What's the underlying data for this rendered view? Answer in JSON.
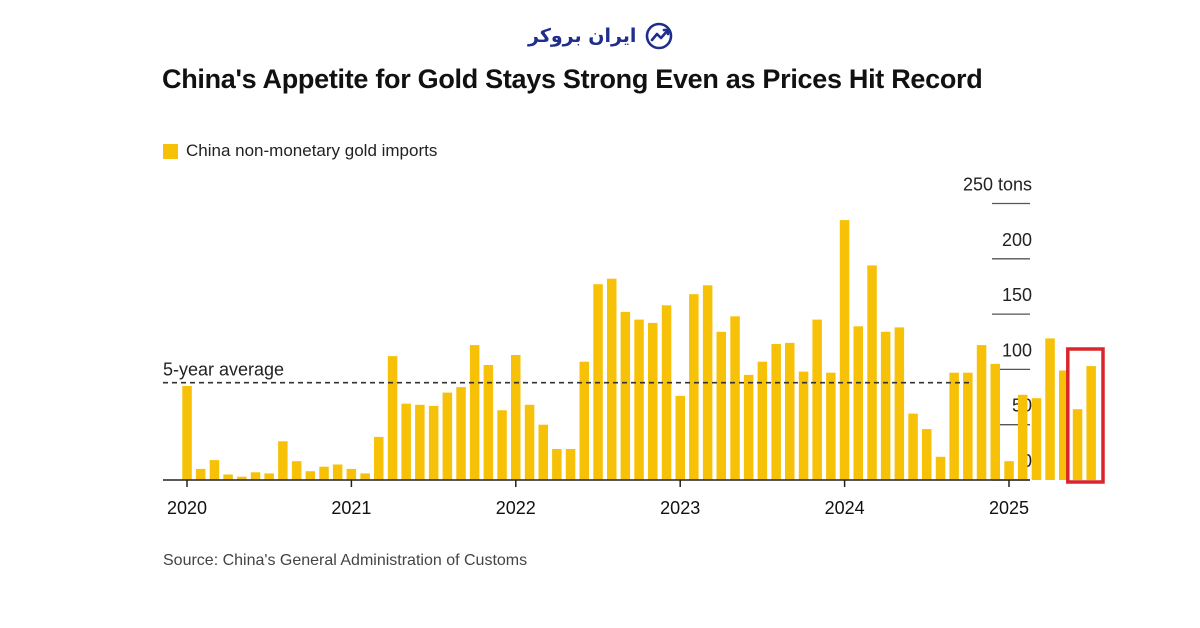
{
  "brand": {
    "name": "ایران بروکر",
    "logo_icon": "chart-trend-icon",
    "color": "#1f2d8f"
  },
  "chart_data": {
    "type": "bar",
    "title": "China's Appetite for Gold Stays Strong Even as Prices Hit Record",
    "legend": [
      "China non-monetary gold imports"
    ],
    "bar_color": "#f6c106",
    "highlight_color": "#d8262c",
    "ylabel": "tons",
    "ylim": [
      0,
      250
    ],
    "y_ticks": [
      {
        "value": 250,
        "label": "250 tons"
      },
      {
        "value": 200,
        "label": "200"
      },
      {
        "value": 150,
        "label": "150"
      },
      {
        "value": 100,
        "label": "100"
      },
      {
        "value": 50,
        "label": "50"
      },
      {
        "value": 0,
        "label": "0"
      }
    ],
    "x_tick_labels": [
      "2020",
      "2021",
      "2022",
      "2023",
      "2024",
      "2025"
    ],
    "start": "2020-01",
    "values": [
      85,
      10,
      18,
      5,
      3,
      7,
      6,
      35,
      17,
      8,
      12,
      14,
      10,
      6,
      39,
      112,
      69,
      68,
      67,
      79,
      84,
      122,
      104,
      63,
      113,
      68,
      50,
      28,
      28,
      107,
      177,
      182,
      152,
      145,
      142,
      158,
      76,
      168,
      176,
      134,
      148,
      95,
      107,
      123,
      124,
      98,
      145,
      97,
      235,
      139,
      194,
      134,
      138,
      60,
      46,
      21,
      97,
      97,
      122,
      105,
      17,
      77,
      74,
      128,
      99,
      64,
      103
    ],
    "highlight_last_n": 2,
    "reference_line": {
      "label": "5-year average",
      "value": 88
    },
    "source": "Source: China's General Administration of Customs"
  }
}
